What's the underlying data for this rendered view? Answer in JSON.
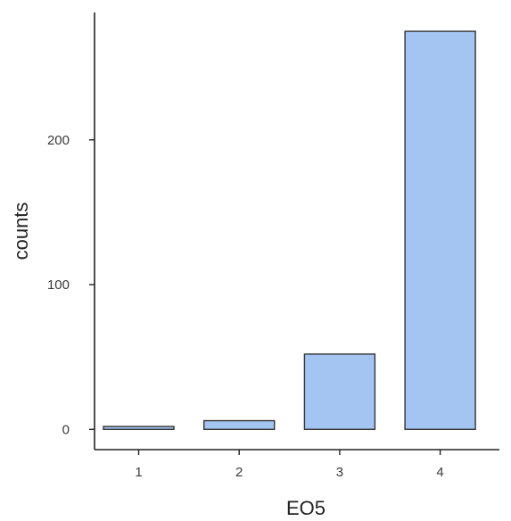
{
  "chart_data": {
    "type": "bar",
    "categories": [
      "1",
      "2",
      "3",
      "4"
    ],
    "values": [
      2,
      6,
      52,
      275
    ],
    "xlabel": "EO5",
    "ylabel": "counts",
    "yticks": [
      0,
      100,
      200
    ],
    "ylim": [
      -14,
      288
    ],
    "grid": false,
    "colors": {
      "bar_fill": "#a4c5f2",
      "bar_stroke": "#333333",
      "axis": "#222222"
    }
  }
}
